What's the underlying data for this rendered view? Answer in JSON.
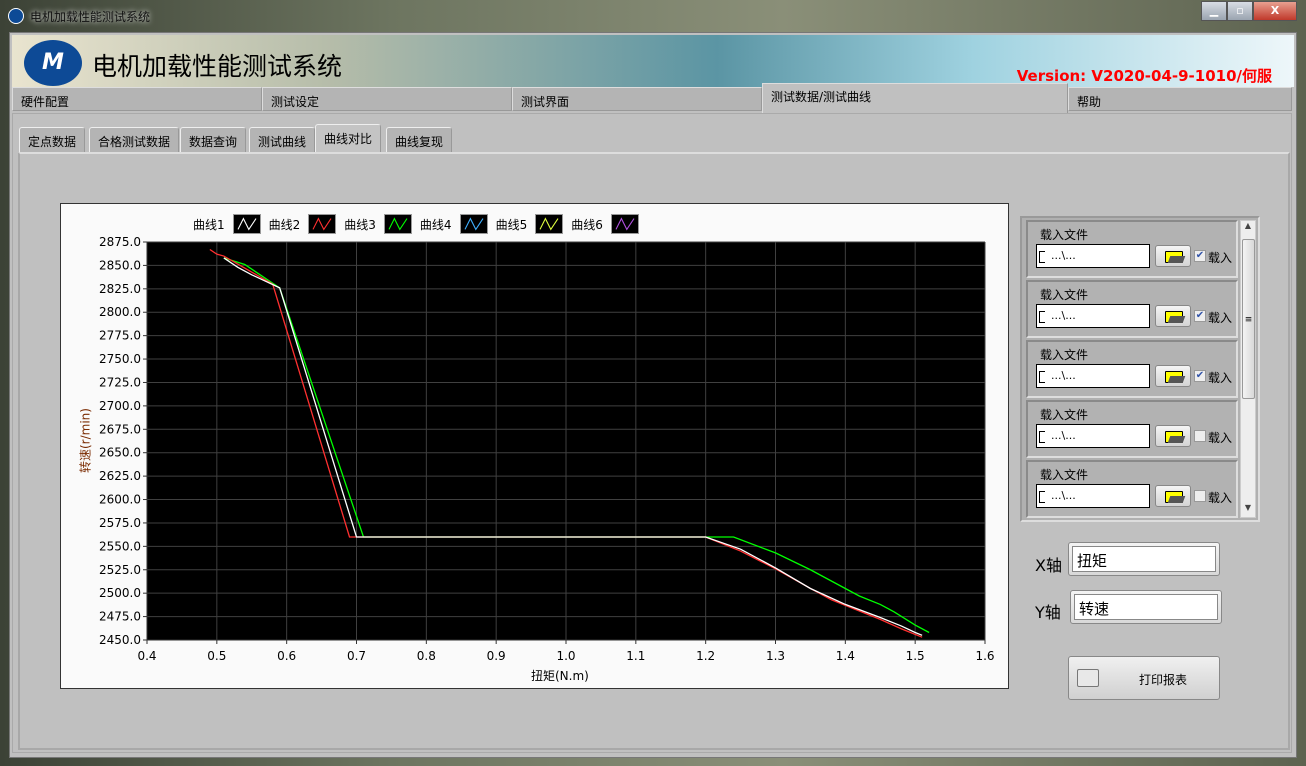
{
  "window": {
    "title": "电机加载性能测试系统",
    "buttons": {
      "minimize": "▁",
      "maximize": "▫",
      "close": "X"
    }
  },
  "banner": {
    "title": "电机加载性能测试系统",
    "version_label": "Version:",
    "version_value": "V2020-04-9-1010/何服",
    "logo_text": "M"
  },
  "main_tabs": [
    {
      "label": "硬件配置"
    },
    {
      "label": "测试设定"
    },
    {
      "label": "测试界面"
    },
    {
      "label": "测试数据/测试曲线",
      "active": true
    },
    {
      "label": "帮助"
    }
  ],
  "sub_tabs": [
    {
      "label": "定点数据"
    },
    {
      "label": "合格测试数据"
    },
    {
      "label": "数据查询"
    },
    {
      "label": "测试曲线"
    },
    {
      "label": "曲线对比",
      "active": true
    },
    {
      "label": "曲线复现"
    }
  ],
  "file_items": [
    {
      "label": "载入文件",
      "path": "...\\...",
      "checkbox_label": "载入",
      "checked": true
    },
    {
      "label": "载入文件",
      "path": "...\\...",
      "checkbox_label": "载入",
      "checked": true
    },
    {
      "label": "载入文件",
      "path": "...\\...",
      "checkbox_label": "载入",
      "checked": true
    },
    {
      "label": "载入文件",
      "path": "...\\...",
      "checkbox_label": "载入",
      "checked": false
    },
    {
      "label": "载入文件",
      "path": "...\\...",
      "checkbox_label": "载入",
      "checked": false
    }
  ],
  "axis_select": {
    "x_label": "X轴",
    "x_value": "扭矩",
    "y_label": "Y轴",
    "y_value": "转速"
  },
  "print_button": "打印报表",
  "chart_data": {
    "type": "line",
    "xlabel": "扭矩(N.m)",
    "ylabel": "转速(r/min)",
    "xlim": [
      0.4,
      1.6
    ],
    "ylim": [
      2450,
      2875
    ],
    "xticks": [
      "0.4",
      "0.5",
      "0.6",
      "0.7",
      "0.8",
      "0.9",
      "1.0",
      "1.1",
      "1.2",
      "1.3",
      "1.4",
      "1.5",
      "1.6"
    ],
    "yticks": [
      "2875.0",
      "2850.0",
      "2825.0",
      "2800.0",
      "2775.0",
      "2750.0",
      "2725.0",
      "2700.0",
      "2675.0",
      "2650.0",
      "2625.0",
      "2600.0",
      "2575.0",
      "2550.0",
      "2525.0",
      "2500.0",
      "2475.0",
      "2450.0"
    ],
    "grid": true,
    "background": "#000000",
    "legend": "top",
    "series": [
      {
        "name": "曲线1",
        "color": "#ffffff",
        "points": [
          [
            0.51,
            2858
          ],
          [
            0.53,
            2848
          ],
          [
            0.55,
            2840
          ],
          [
            0.57,
            2833
          ],
          [
            0.59,
            2826
          ],
          [
            0.7,
            2560
          ],
          [
            1.2,
            2560
          ],
          [
            1.25,
            2547
          ],
          [
            1.3,
            2527
          ],
          [
            1.35,
            2505
          ],
          [
            1.4,
            2488
          ],
          [
            1.45,
            2474
          ],
          [
            1.48,
            2465
          ],
          [
            1.5,
            2458
          ],
          [
            1.51,
            2455
          ]
        ]
      },
      {
        "name": "曲线2",
        "color": "#ff3030",
        "points": [
          [
            0.49,
            2867
          ],
          [
            0.5,
            2862
          ],
          [
            0.51,
            2860
          ],
          [
            0.58,
            2830
          ],
          [
            0.69,
            2560
          ],
          [
            1.2,
            2560
          ],
          [
            1.25,
            2545
          ],
          [
            1.3,
            2526
          ],
          [
            1.35,
            2505
          ],
          [
            1.38,
            2493
          ],
          [
            1.4,
            2487
          ],
          [
            1.45,
            2472
          ],
          [
            1.48,
            2462
          ],
          [
            1.51,
            2453
          ]
        ]
      },
      {
        "name": "曲线3",
        "color": "#00ff00",
        "points": [
          [
            0.51,
            2858
          ],
          [
            0.54,
            2851
          ],
          [
            0.59,
            2826
          ],
          [
            0.71,
            2560
          ],
          [
            1.24,
            2560
          ],
          [
            1.3,
            2543
          ],
          [
            1.35,
            2525
          ],
          [
            1.4,
            2505
          ],
          [
            1.42,
            2497
          ],
          [
            1.45,
            2488
          ],
          [
            1.47,
            2480
          ],
          [
            1.5,
            2466
          ],
          [
            1.52,
            2458
          ]
        ]
      },
      {
        "name": "曲线4",
        "color": "#40b0ff",
        "points": []
      },
      {
        "name": "曲线5",
        "color": "#e0ff40",
        "points": []
      },
      {
        "name": "曲线6",
        "color": "#b050e0",
        "points": []
      }
    ]
  }
}
